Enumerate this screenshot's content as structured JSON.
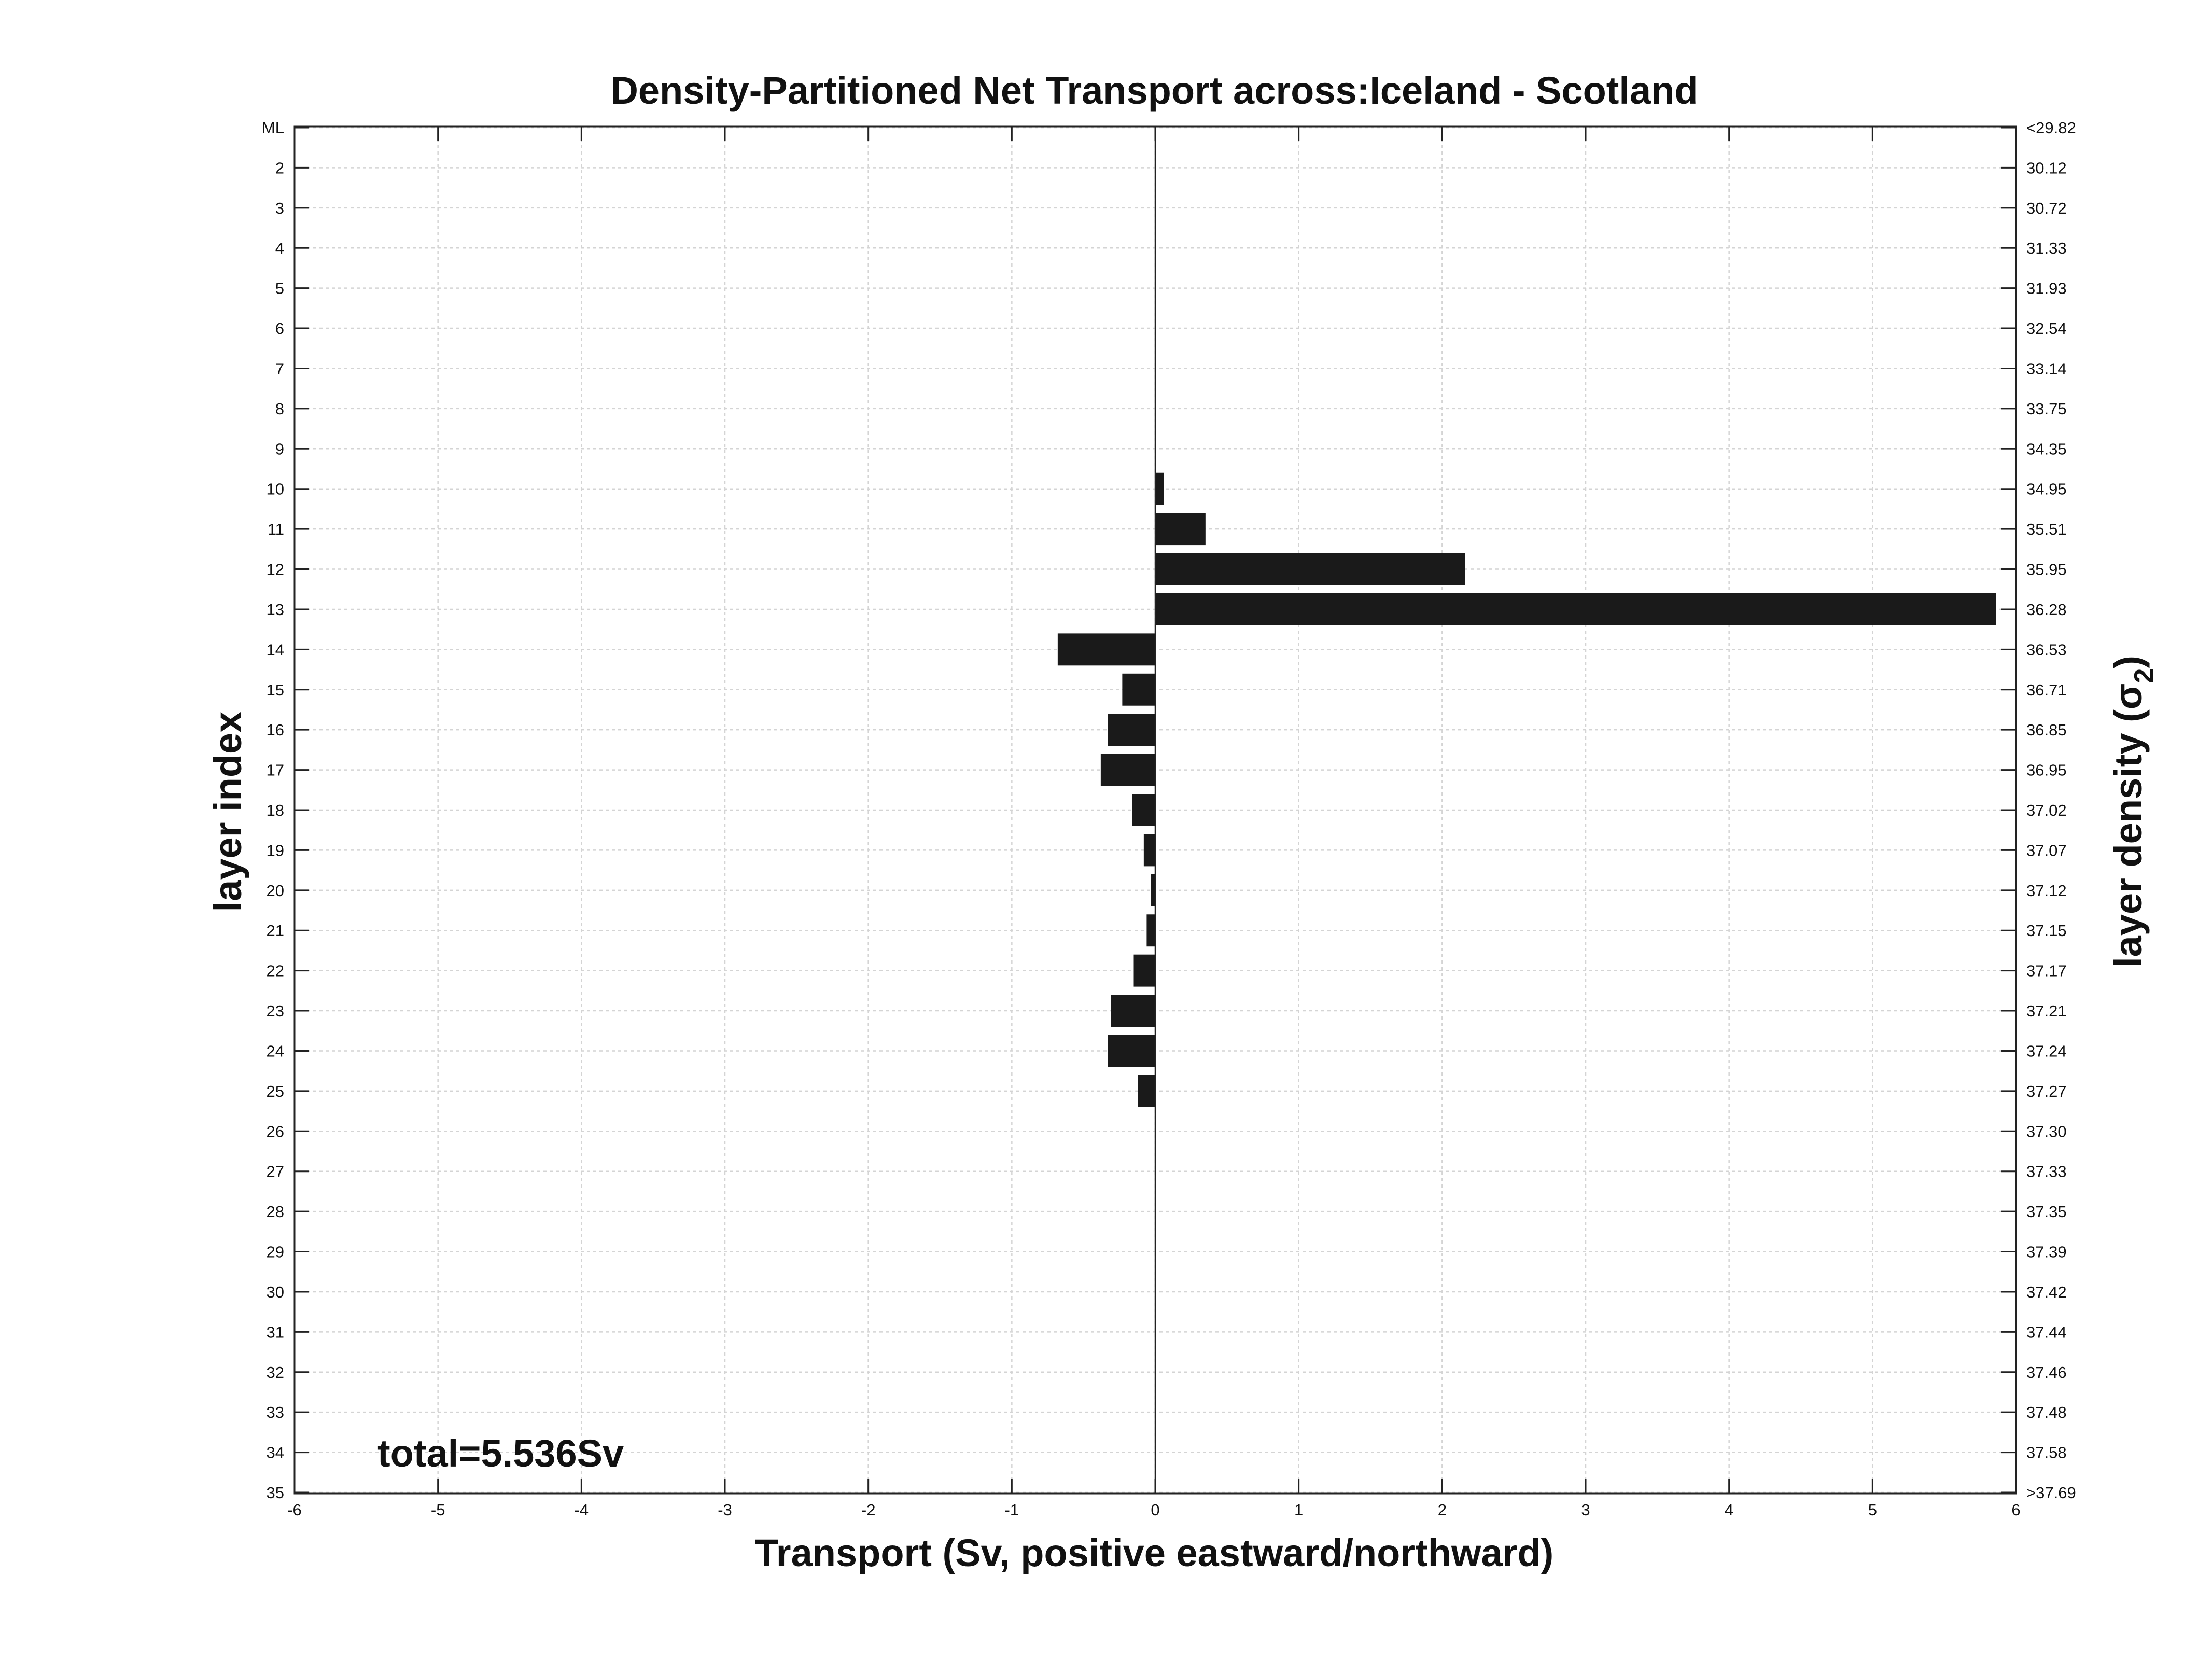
{
  "chart_data": {
    "type": "bar",
    "orientation": "horizontal",
    "title": "Density-Partitioned Net Transport across:Iceland - Scotland",
    "xlabel": "Transport (Sv, positive eastward/northward)",
    "ylabel": "layer index",
    "ylabel_right": "layer density (σ",
    "ylabel_right_subscript": "2",
    "ylabel_right_close": ")",
    "annotation": "total=5.536Sv",
    "xlim": [
      -6,
      6
    ],
    "x_ticks": [
      "-6",
      "-5",
      "-4",
      "-3",
      "-2",
      "-1",
      "0",
      "1",
      "2",
      "3",
      "4",
      "5",
      "6"
    ],
    "grid": true,
    "layer_labels": [
      "ML",
      "2",
      "3",
      "4",
      "5",
      "6",
      "7",
      "8",
      "9",
      "10",
      "11",
      "12",
      "13",
      "14",
      "15",
      "16",
      "17",
      "18",
      "19",
      "20",
      "21",
      "22",
      "23",
      "24",
      "25",
      "26",
      "27",
      "28",
      "29",
      "30",
      "31",
      "32",
      "33",
      "34",
      "35"
    ],
    "density_labels": [
      "<29.82",
      "30.12",
      "30.72",
      "31.33",
      "31.93",
      "32.54",
      "33.14",
      "33.75",
      "34.35",
      "34.95",
      "35.51",
      "35.95",
      "36.28",
      "36.53",
      "36.71",
      "36.85",
      "36.95",
      "37.02",
      "37.07",
      "37.12",
      "37.15",
      "37.17",
      "37.21",
      "37.24",
      "37.27",
      "37.30",
      "37.33",
      "37.35",
      "37.39",
      "37.42",
      "37.44",
      "37.46",
      "37.48",
      "37.58",
      ">37.69"
    ],
    "values": [
      0,
      0,
      0,
      0,
      0,
      0,
      0,
      0,
      0,
      0.06,
      0.35,
      2.16,
      5.86,
      -0.68,
      -0.23,
      -0.33,
      -0.38,
      -0.16,
      -0.08,
      -0.03,
      -0.06,
      -0.15,
      -0.31,
      -0.33,
      -0.12,
      0,
      0,
      0,
      0,
      0,
      0,
      0,
      0,
      0,
      0
    ],
    "bar_color": "#1a1a1a"
  }
}
